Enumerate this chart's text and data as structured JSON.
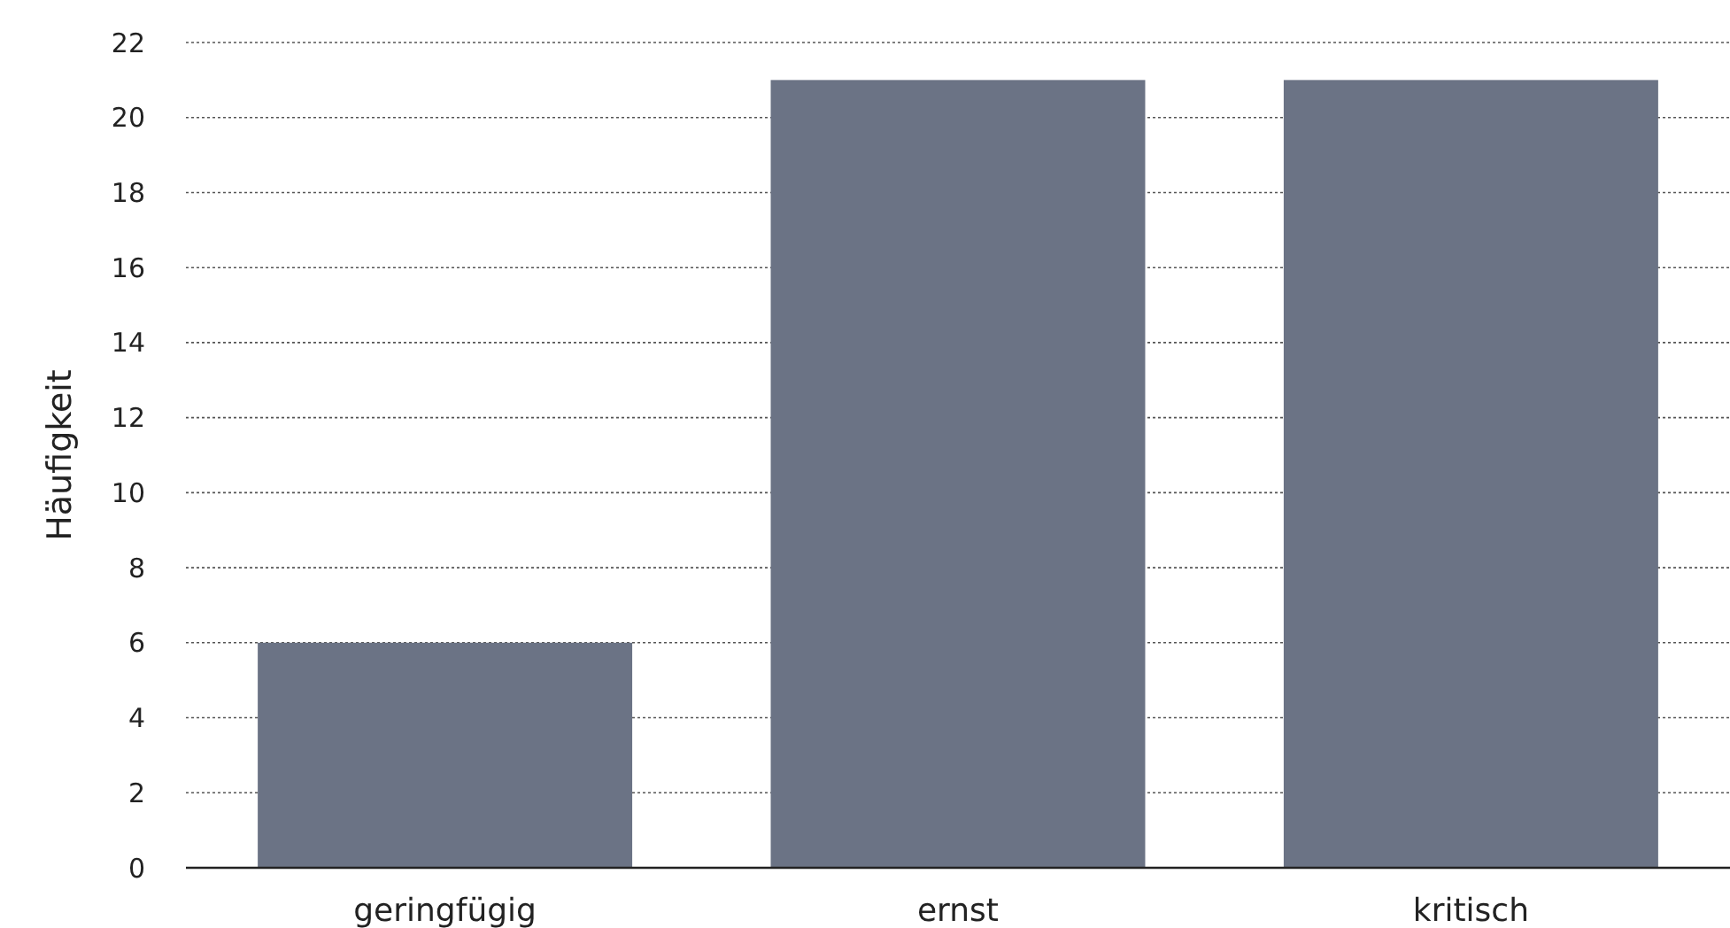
{
  "chart_data": {
    "type": "bar",
    "ylabel": "Häufigkeit",
    "categories": [
      "geringfügig",
      "ernst",
      "kritisch"
    ],
    "values": [
      6,
      21,
      21
    ],
    "color": "#6b7385",
    "ylim": [
      0,
      22
    ],
    "yticks": [
      0,
      2,
      4,
      6,
      8,
      10,
      12,
      14,
      16,
      18,
      20,
      22
    ],
    "grid": "y"
  }
}
